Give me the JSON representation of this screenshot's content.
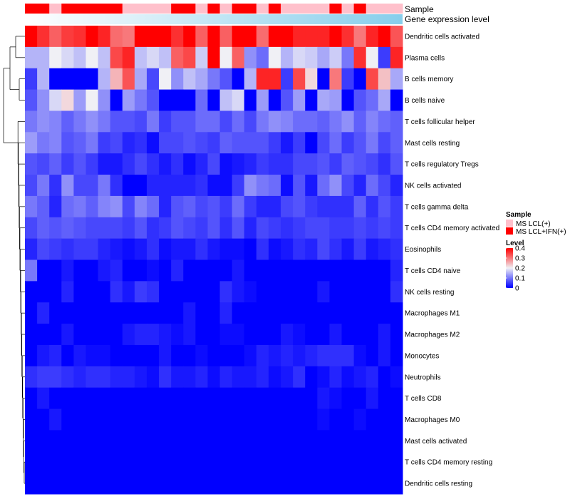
{
  "chart_data": {
    "type": "heatmap",
    "annotation_labels": [
      "Sample",
      "Gene expression level"
    ],
    "columns_count": 31,
    "sample_annotation": [
      1,
      1,
      0,
      1,
      1,
      1,
      1,
      1,
      0,
      0,
      0,
      0,
      1,
      1,
      0,
      1,
      0,
      1,
      1,
      0,
      1,
      0,
      0,
      0,
      0,
      1,
      0,
      1,
      0,
      0,
      0
    ],
    "sample_colors": [
      "#ffc0cb",
      "#ff0000"
    ],
    "rows": [
      "Dendritic cells activated",
      "Plasma cells",
      "B cells memory",
      "B cells naive",
      "T cells follicular helper",
      "Mast cells resting",
      "T cells regulatory  Tregs",
      "NK cells activated",
      "T cells gamma delta",
      "T cells CD4 memory activated",
      "Eosinophils",
      "T cells CD4 naive",
      "NK cells resting",
      "Macrophages M1",
      "Macrophages M2",
      "Monocytes",
      "Neutrophils",
      "T cells CD8",
      "Macrophages M0",
      "Mast cells activated",
      "T cells CD4 memory resting",
      "Dendritic cells resting"
    ],
    "values": [
      [
        0.4,
        0.36,
        0.32,
        0.35,
        0.36,
        0.4,
        0.37,
        0.31,
        0.3,
        0.4,
        0.4,
        0.4,
        0.36,
        0.4,
        0.32,
        0.4,
        0.32,
        0.4,
        0.4,
        0.31,
        0.4,
        0.4,
        0.37,
        0.37,
        0.37,
        0.4,
        0.36,
        0.3,
        0.37,
        0.4,
        0.33
      ],
      [
        0.15,
        0.15,
        0.2,
        0.18,
        0.16,
        0.2,
        0.16,
        0.34,
        0.37,
        0.16,
        0.18,
        0.16,
        0.32,
        0.34,
        0.17,
        0.4,
        0.2,
        0.32,
        0.12,
        0.09,
        0.2,
        0.15,
        0.18,
        0.17,
        0.14,
        0.17,
        0.1,
        0.36,
        0.2,
        0.05,
        0.37
      ],
      [
        0.05,
        0.15,
        0.0,
        0.0,
        0.0,
        0.0,
        0.15,
        0.25,
        0.33,
        0.14,
        0.06,
        0.2,
        0.12,
        0.16,
        0.14,
        0.1,
        0.07,
        0.0,
        0.15,
        0.37,
        0.37,
        0.05,
        0.34,
        0.22,
        0.0,
        0.3,
        0.05,
        0.0,
        0.34,
        0.24,
        0.14
      ],
      [
        0.07,
        0.12,
        0.18,
        0.22,
        0.13,
        0.2,
        0.12,
        0.0,
        0.13,
        0.1,
        0.07,
        0.0,
        0.0,
        0.0,
        0.09,
        0.0,
        0.16,
        0.18,
        0.0,
        0.13,
        0.0,
        0.07,
        0.13,
        0.0,
        0.14,
        0.13,
        0.0,
        0.07,
        0.09,
        0.14,
        0.0
      ],
      [
        0.1,
        0.12,
        0.11,
        0.08,
        0.1,
        0.12,
        0.1,
        0.07,
        0.07,
        0.06,
        0.1,
        0.05,
        0.07,
        0.07,
        0.09,
        0.09,
        0.06,
        0.09,
        0.06,
        0.1,
        0.12,
        0.11,
        0.09,
        0.09,
        0.08,
        0.1,
        0.12,
        0.08,
        0.11,
        0.09,
        0.08
      ],
      [
        0.13,
        0.1,
        0.11,
        0.07,
        0.08,
        0.1,
        0.05,
        0.06,
        0.03,
        0.04,
        0.01,
        0.06,
        0.06,
        0.07,
        0.06,
        0.05,
        0.08,
        0.07,
        0.07,
        0.07,
        0.05,
        0.02,
        0.05,
        0.0,
        0.06,
        0.09,
        0.05,
        0.07,
        0.1,
        0.06,
        0.08
      ],
      [
        0.07,
        0.06,
        0.08,
        0.05,
        0.07,
        0.05,
        0.02,
        0.02,
        0.04,
        0.06,
        0.04,
        0.02,
        0.04,
        0.01,
        0.03,
        0.06,
        0.01,
        0.02,
        0.03,
        0.05,
        0.04,
        0.04,
        0.06,
        0.06,
        0.07,
        0.05,
        0.08,
        0.07,
        0.06,
        0.04,
        0.07
      ],
      [
        0.06,
        0.1,
        0.04,
        0.12,
        0.06,
        0.06,
        0.1,
        0.04,
        0.0,
        0.0,
        0.03,
        0.03,
        0.03,
        0.03,
        0.04,
        0.01,
        0.01,
        0.05,
        0.12,
        0.1,
        0.09,
        0.01,
        0.07,
        0.02,
        0.09,
        0.12,
        0.06,
        0.03,
        0.09,
        0.06,
        0.03
      ],
      [
        0.1,
        0.08,
        0.03,
        0.09,
        0.1,
        0.08,
        0.11,
        0.12,
        0.06,
        0.11,
        0.09,
        0.03,
        0.07,
        0.08,
        0.06,
        0.07,
        0.05,
        0.09,
        0.05,
        0.03,
        0.03,
        0.06,
        0.07,
        0.05,
        0.04,
        0.04,
        0.04,
        0.08,
        0.04,
        0.07,
        0.05
      ],
      [
        0.06,
        0.08,
        0.07,
        0.08,
        0.07,
        0.06,
        0.06,
        0.06,
        0.05,
        0.07,
        0.04,
        0.05,
        0.07,
        0.06,
        0.05,
        0.07,
        0.04,
        0.07,
        0.03,
        0.06,
        0.05,
        0.04,
        0.05,
        0.06,
        0.06,
        0.05,
        0.05,
        0.06,
        0.05,
        0.06,
        0.05
      ],
      [
        0.03,
        0.06,
        0.05,
        0.04,
        0.05,
        0.05,
        0.03,
        0.02,
        0.01,
        0.02,
        0.04,
        0.01,
        0.02,
        0.02,
        0.04,
        0.02,
        0.01,
        0.01,
        0.0,
        0.04,
        0.01,
        0.02,
        0.04,
        0.03,
        0.06,
        0.04,
        0.02,
        0.05,
        0.02,
        0.03,
        0.04
      ],
      [
        0.1,
        0.0,
        0.0,
        0.02,
        0.0,
        0.0,
        0.02,
        0.03,
        0.0,
        0.0,
        0.01,
        0.0,
        0.03,
        0.0,
        0.0,
        0.0,
        0.0,
        0.02,
        0.0,
        0.0,
        0.0,
        0.0,
        0.0,
        0.0,
        0.0,
        0.0,
        0.0,
        0.0,
        0.0,
        0.0,
        0.03
      ],
      [
        0.0,
        0.0,
        0.0,
        0.03,
        0.0,
        0.0,
        0.0,
        0.04,
        0.02,
        0.05,
        0.04,
        0.0,
        0.0,
        0.0,
        0.0,
        0.0,
        0.04,
        0.02,
        0.01,
        0.0,
        0.0,
        0.0,
        0.0,
        0.0,
        0.02,
        0.0,
        0.0,
        0.0,
        0.0,
        0.0,
        0.04
      ],
      [
        0.0,
        0.03,
        0.0,
        0.0,
        0.0,
        0.0,
        0.0,
        0.0,
        0.0,
        0.0,
        0.0,
        0.0,
        0.0,
        0.02,
        0.0,
        0.0,
        0.03,
        0.0,
        0.0,
        0.0,
        0.0,
        0.0,
        0.0,
        0.0,
        0.0,
        0.0,
        0.0,
        0.0,
        0.0,
        0.0,
        0.0
      ],
      [
        0.0,
        0.0,
        0.0,
        0.02,
        0.0,
        0.0,
        0.0,
        0.0,
        0.02,
        0.03,
        0.03,
        0.02,
        0.01,
        0.02,
        0.0,
        0.0,
        0.01,
        0.01,
        0.0,
        0.0,
        0.0,
        0.02,
        0.01,
        0.0,
        0.0,
        0.02,
        0.0,
        0.0,
        0.0,
        0.02,
        0.0
      ],
      [
        0.0,
        0.02,
        0.03,
        0.0,
        0.02,
        0.01,
        0.01,
        0.0,
        0.0,
        0.0,
        0.0,
        0.02,
        0.0,
        0.0,
        0.01,
        0.0,
        0.0,
        0.0,
        0.01,
        0.03,
        0.02,
        0.03,
        0.02,
        0.03,
        0.04,
        0.04,
        0.04,
        0.01,
        0.0,
        0.02,
        0.0
      ],
      [
        0.04,
        0.05,
        0.05,
        0.04,
        0.03,
        0.04,
        0.04,
        0.03,
        0.03,
        0.02,
        0.01,
        0.04,
        0.02,
        0.02,
        0.03,
        0.01,
        0.03,
        0.02,
        0.02,
        0.03,
        0.01,
        0.02,
        0.04,
        0.0,
        0.01,
        0.03,
        0.01,
        0.02,
        0.03,
        0.0,
        0.01
      ],
      [
        0.0,
        0.02,
        0.0,
        0.0,
        0.0,
        0.0,
        0.0,
        0.0,
        0.0,
        0.0,
        0.0,
        0.0,
        0.0,
        0.0,
        0.0,
        0.0,
        0.0,
        0.0,
        0.0,
        0.0,
        0.0,
        0.0,
        0.0,
        0.0,
        0.02,
        0.01,
        0.0,
        0.0,
        0.02,
        0.0,
        0.0
      ],
      [
        0.0,
        0.0,
        0.02,
        0.0,
        0.0,
        0.0,
        0.0,
        0.0,
        0.0,
        0.0,
        0.0,
        0.0,
        0.0,
        0.0,
        0.0,
        0.0,
        0.0,
        0.0,
        0.0,
        0.0,
        0.0,
        0.0,
        0.0,
        0.0,
        0.01,
        0.0,
        0.0,
        0.01,
        0.0,
        0.0,
        0.0
      ],
      [
        0.0,
        0.0,
        0.0,
        0.0,
        0.0,
        0.0,
        0.0,
        0.0,
        0.0,
        0.0,
        0.0,
        0.0,
        0.0,
        0.0,
        0.0,
        0.0,
        0.0,
        0.0,
        0.0,
        0.0,
        0.0,
        0.0,
        0.0,
        0.0,
        0.0,
        0.0,
        0.0,
        0.0,
        0.0,
        0.0,
        0.0
      ],
      [
        0.0,
        0.0,
        0.0,
        0.0,
        0.0,
        0.0,
        0.0,
        0.0,
        0.0,
        0.0,
        0.0,
        0.0,
        0.0,
        0.0,
        0.0,
        0.0,
        0.0,
        0.0,
        0.0,
        0.0,
        0.0,
        0.0,
        0.0,
        0.0,
        0.0,
        0.0,
        0.0,
        0.0,
        0.0,
        0.0,
        0.0
      ],
      [
        0.0,
        0.0,
        0.0,
        0.0,
        0.0,
        0.0,
        0.0,
        0.0,
        0.0,
        0.0,
        0.0,
        0.0,
        0.0,
        0.0,
        0.0,
        0.0,
        0.0,
        0.0,
        0.0,
        0.0,
        0.0,
        0.0,
        0.0,
        0.0,
        0.0,
        0.0,
        0.0,
        0.0,
        0.0,
        0.0,
        0.0
      ]
    ],
    "color_scale": {
      "stops": [
        {
          "value": 0,
          "color": "#0000ff"
        },
        {
          "value": 0.2,
          "color": "#f0f0f5"
        },
        {
          "value": 0.4,
          "color": "#ff0000"
        }
      ]
    },
    "gene_expression_gradient": [
      "#ffffff",
      "#87ceeb"
    ],
    "legend": {
      "sample_title": "Sample",
      "sample_entries": [
        "MS LCL(+)",
        "MS LCL+IFN(+)"
      ],
      "level_title": "Level",
      "level_ticks": [
        "0.4",
        "0.3",
        "0.2",
        "0.1",
        "0"
      ],
      "level_tick_values": [
        0.4,
        0.3,
        0.2,
        0.1,
        0
      ]
    }
  }
}
